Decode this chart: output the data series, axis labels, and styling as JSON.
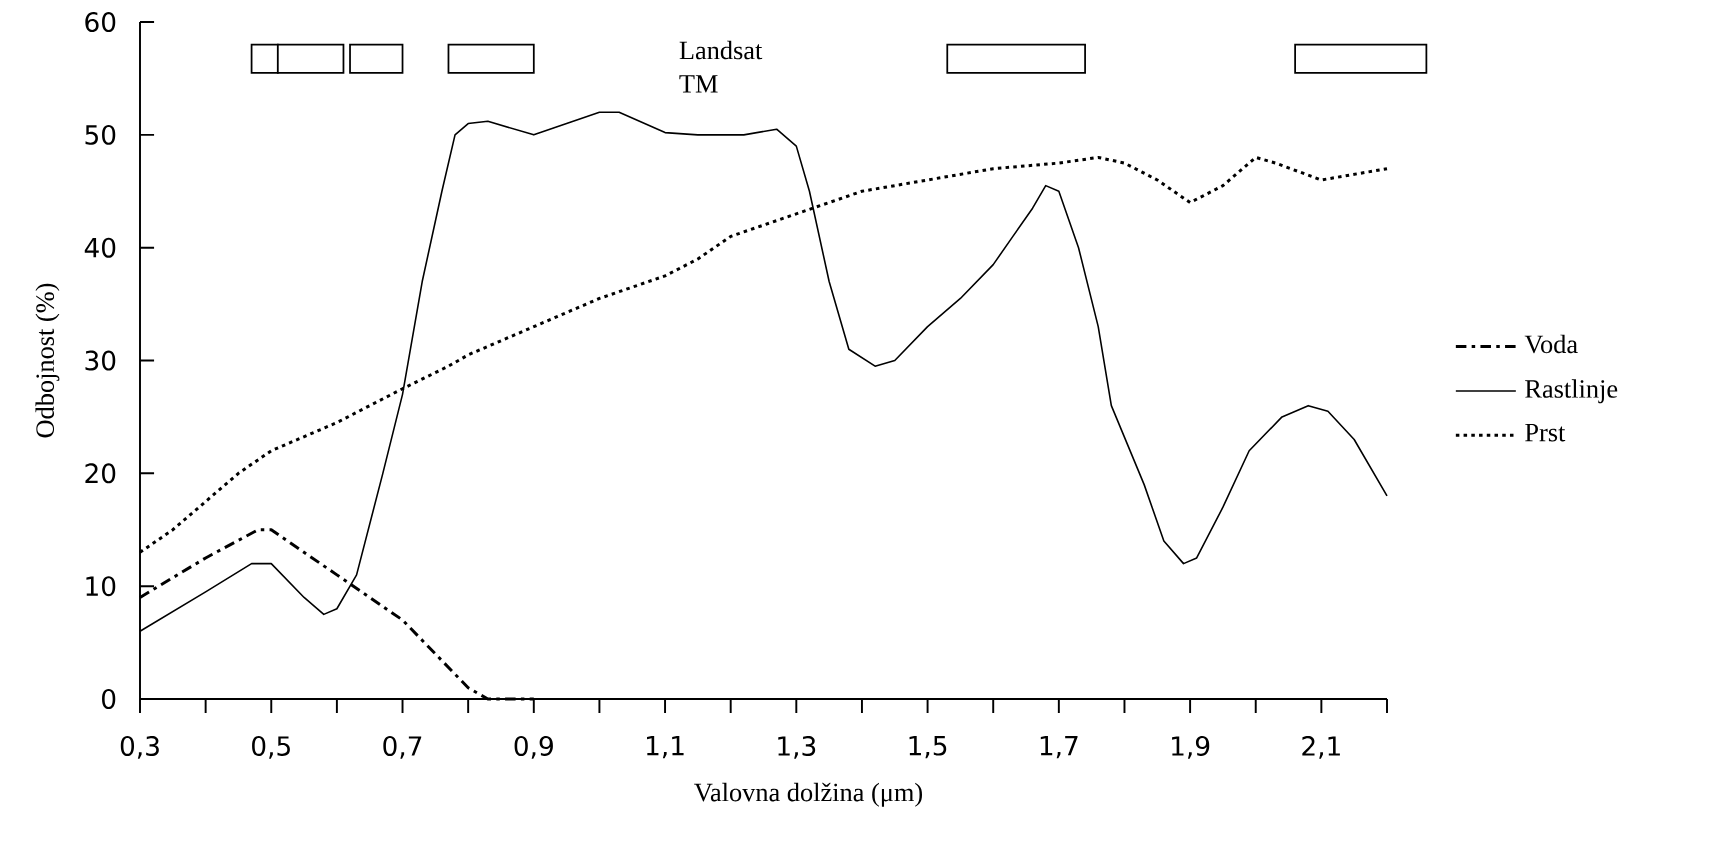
{
  "chart_data": {
    "type": "line",
    "xlabel": "Valovna dolžina (μm)",
    "ylabel": "Odbojnost (%)",
    "xlim": [
      0.3,
      2.2
    ],
    "xticks": [
      {
        "value": 0.3,
        "label": "0,3"
      },
      {
        "value": 0.4,
        "label": null
      },
      {
        "value": 0.5,
        "label": "0,5"
      },
      {
        "value": 0.6,
        "label": null
      },
      {
        "value": 0.7,
        "label": "0,7"
      },
      {
        "value": 0.8,
        "label": null
      },
      {
        "value": 0.9,
        "label": "0,9"
      },
      {
        "value": 1.0,
        "label": null
      },
      {
        "value": 1.1,
        "label": "1,1"
      },
      {
        "value": 1.2,
        "label": null
      },
      {
        "value": 1.3,
        "label": "1,3"
      },
      {
        "value": 1.4,
        "label": null
      },
      {
        "value": 1.5,
        "label": "1,5"
      },
      {
        "value": 1.6,
        "label": null
      },
      {
        "value": 1.7,
        "label": "1,7"
      },
      {
        "value": 1.8,
        "label": null
      },
      {
        "value": 1.9,
        "label": "1,9"
      },
      {
        "value": 2.0,
        "label": null
      },
      {
        "value": 2.1,
        "label": "2,1"
      },
      {
        "value": 2.2,
        "label": null
      }
    ],
    "ylim": [
      0,
      60
    ],
    "yticks": [
      0,
      10,
      20,
      30,
      40,
      50,
      60
    ],
    "legend": "right",
    "grid": false,
    "annotations": [
      "Landsat TM"
    ],
    "bands": [
      {
        "axis": "x",
        "from": 0.47,
        "to": 0.51,
        "color": "#ffffff"
      },
      {
        "axis": "x",
        "from": 0.51,
        "to": 0.61,
        "color": "#ffffff"
      },
      {
        "axis": "x",
        "from": 0.62,
        "to": 0.7,
        "color": "#ffffff"
      },
      {
        "axis": "x",
        "from": 0.77,
        "to": 0.9,
        "color": "#ffffff"
      },
      {
        "axis": "x",
        "from": 1.53,
        "to": 1.74,
        "color": "#ffffff"
      },
      {
        "axis": "x",
        "from": 2.06,
        "to": 2.26,
        "color": "#ffffff"
      }
    ],
    "series": [
      {
        "name": "Voda",
        "color": "#000000",
        "line_style": "dashdotted",
        "x": [
          0.3,
          0.4,
          0.48,
          0.5,
          0.6,
          0.7,
          0.75,
          0.8,
          0.83,
          0.9
        ],
        "values": [
          9,
          12.5,
          15,
          15,
          11,
          7,
          4,
          1,
          0,
          0
        ]
      },
      {
        "name": "Rastlinje",
        "color": "#000000",
        "line_style": "solid",
        "x": [
          0.3,
          0.4,
          0.47,
          0.5,
          0.55,
          0.58,
          0.6,
          0.63,
          0.67,
          0.7,
          0.73,
          0.76,
          0.78,
          0.8,
          0.83,
          0.9,
          0.95,
          1.0,
          1.03,
          1.1,
          1.15,
          1.22,
          1.27,
          1.3,
          1.32,
          1.35,
          1.38,
          1.42,
          1.45,
          1.5,
          1.55,
          1.6,
          1.63,
          1.66,
          1.68,
          1.7,
          1.73,
          1.76,
          1.78,
          1.83,
          1.86,
          1.89,
          1.91,
          1.95,
          1.99,
          2.04,
          2.08,
          2.11,
          2.15,
          2.2
        ],
        "values": [
          6,
          9.5,
          12,
          12,
          9,
          7.5,
          8,
          11,
          20,
          27,
          37,
          45,
          50,
          51,
          51.2,
          50,
          51,
          52,
          52,
          50.2,
          50,
          50,
          50.5,
          49,
          45,
          37,
          31,
          29.5,
          30,
          33,
          35.5,
          38.5,
          41,
          43.5,
          45.5,
          45,
          40,
          33,
          26,
          19,
          14,
          12,
          12.5,
          17,
          22,
          25,
          26,
          25.5,
          23,
          18
        ]
      },
      {
        "name": "Prst",
        "color": "#000000",
        "line_style": "dotted",
        "x": [
          0.3,
          0.35,
          0.4,
          0.45,
          0.5,
          0.6,
          0.7,
          0.77,
          0.8,
          0.9,
          1.0,
          1.1,
          1.15,
          1.2,
          1.3,
          1.4,
          1.5,
          1.6,
          1.7,
          1.76,
          1.8,
          1.85,
          1.9,
          1.95,
          2.0,
          2.03,
          2.1,
          2.2
        ],
        "values": [
          13,
          15,
          17.5,
          20,
          22,
          24.5,
          27.5,
          29.5,
          30.5,
          33,
          35.5,
          37.5,
          39,
          41,
          43,
          45,
          46,
          47,
          47.5,
          48,
          47.5,
          46,
          44,
          45.5,
          48,
          47.5,
          46,
          47
        ]
      }
    ]
  }
}
